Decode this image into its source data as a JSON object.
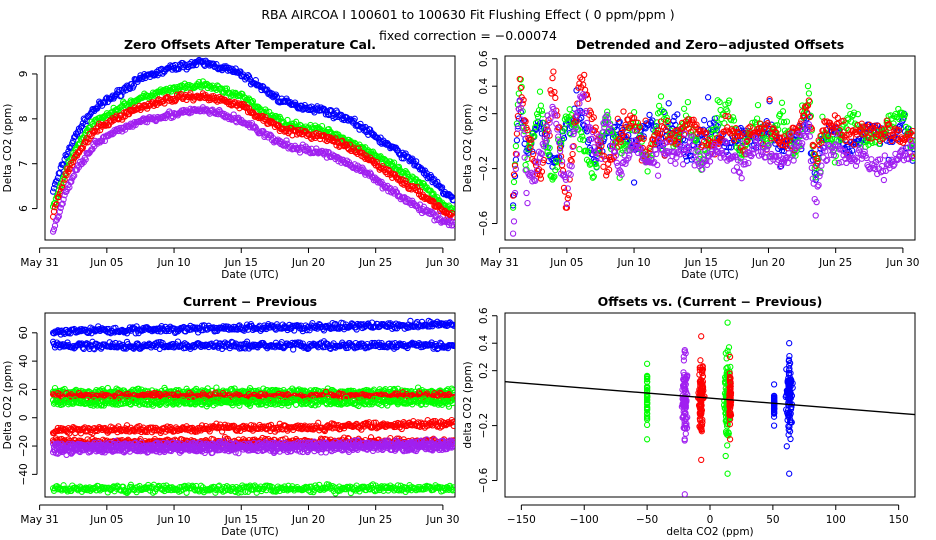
{
  "header": {
    "title": "RBA   AIRCOA I   100601 to 100630   Fit Flushing Effect ( 0 ppm/ppm )",
    "subtitle": "fixed correction = −0.00074"
  },
  "colors": {
    "blue": "#0000ff",
    "green": "#00ff00",
    "red": "#ff0000",
    "purple": "#a020f0",
    "black": "#000000"
  },
  "chart_data": [
    {
      "type": "scatter",
      "title": "Zero Offsets After Temperature Cal.",
      "xlabel": "Date (UTC)",
      "ylabel": "Delta CO2 (ppm)",
      "x_is_day": true,
      "xlim": [
        0.4,
        30.9
      ],
      "ylim": [
        5.3,
        9.4
      ],
      "xticks": [
        0,
        5,
        10,
        15,
        20,
        25,
        30
      ],
      "xtick_labels": [
        "May 31",
        "Jun 05",
        "Jun 10",
        "Jun 15",
        "Jun 20",
        "Jun 25",
        "Jun 30"
      ],
      "yticks": [
        6,
        7,
        8,
        9
      ],
      "ytick_labels": [
        "6",
        "7",
        "8",
        "9"
      ],
      "series": [
        {
          "name": "blue",
          "color": "#0000ff",
          "x": [
            1,
            2,
            3,
            4,
            5,
            6,
            7,
            8,
            9,
            10,
            11,
            12,
            13,
            14,
            15,
            16,
            17,
            18,
            19,
            20,
            21,
            22,
            23,
            24,
            25,
            26,
            27,
            28,
            29,
            30,
            30.8
          ],
          "values": [
            6.4,
            7.2,
            7.8,
            8.2,
            8.4,
            8.6,
            8.8,
            8.95,
            9.05,
            9.15,
            9.2,
            9.25,
            9.2,
            9.1,
            9.0,
            8.8,
            8.6,
            8.4,
            8.3,
            8.25,
            8.2,
            8.1,
            8.0,
            7.8,
            7.6,
            7.4,
            7.2,
            7.0,
            6.7,
            6.4,
            6.2
          ]
        },
        {
          "name": "green",
          "color": "#00ff00",
          "x": [
            1,
            2,
            3,
            4,
            5,
            6,
            7,
            8,
            9,
            10,
            11,
            12,
            13,
            14,
            15,
            16,
            17,
            18,
            19,
            20,
            21,
            22,
            23,
            24,
            25,
            26,
            27,
            28,
            29,
            30,
            30.8
          ],
          "values": [
            6.0,
            6.9,
            7.5,
            7.9,
            8.1,
            8.25,
            8.4,
            8.5,
            8.6,
            8.65,
            8.7,
            8.75,
            8.7,
            8.6,
            8.5,
            8.3,
            8.1,
            7.95,
            7.85,
            7.8,
            7.75,
            7.65,
            7.5,
            7.35,
            7.2,
            7.0,
            6.8,
            6.6,
            6.4,
            6.1,
            5.95
          ]
        },
        {
          "name": "red",
          "color": "#ff0000",
          "x": [
            1,
            2,
            3,
            4,
            5,
            6,
            7,
            8,
            9,
            10,
            11,
            12,
            13,
            14,
            15,
            16,
            17,
            18,
            19,
            20,
            21,
            22,
            23,
            24,
            25,
            26,
            27,
            28,
            29,
            30,
            30.8
          ],
          "values": [
            5.9,
            6.8,
            7.3,
            7.7,
            7.9,
            8.05,
            8.2,
            8.3,
            8.4,
            8.45,
            8.5,
            8.5,
            8.45,
            8.4,
            8.3,
            8.1,
            7.95,
            7.8,
            7.7,
            7.65,
            7.6,
            7.5,
            7.35,
            7.2,
            7.0,
            6.8,
            6.6,
            6.4,
            6.2,
            5.95,
            5.8
          ]
        },
        {
          "name": "purple",
          "color": "#a020f0",
          "x": [
            1,
            2,
            3,
            4,
            5,
            6,
            7,
            8,
            9,
            10,
            11,
            12,
            13,
            14,
            15,
            16,
            17,
            18,
            19,
            20,
            21,
            22,
            23,
            24,
            25,
            26,
            27,
            28,
            29,
            30,
            30.8
          ],
          "values": [
            5.5,
            6.4,
            7.0,
            7.4,
            7.6,
            7.75,
            7.9,
            8.0,
            8.05,
            8.1,
            8.15,
            8.2,
            8.15,
            8.05,
            7.95,
            7.8,
            7.6,
            7.45,
            7.35,
            7.3,
            7.25,
            7.15,
            7.0,
            6.85,
            6.65,
            6.45,
            6.25,
            6.05,
            5.9,
            5.75,
            5.65
          ]
        }
      ]
    },
    {
      "type": "scatter",
      "title": "Detrended and Zero−adjusted Offsets",
      "xlabel": "Date (UTC)",
      "ylabel": "Delta CO2 (ppm)",
      "x_is_day": true,
      "xlim": [
        0.4,
        30.9
      ],
      "ylim": [
        -0.72,
        0.62
      ],
      "xticks": [
        0,
        5,
        10,
        15,
        20,
        25,
        30
      ],
      "xtick_labels": [
        "May 31",
        "Jun 05",
        "Jun 10",
        "Jun 15",
        "Jun 20",
        "Jun 25",
        "Jun 30"
      ],
      "yticks": [
        -0.6,
        -0.2,
        0.2,
        0.4,
        0.6
      ],
      "ytick_labels": [
        "−0.6",
        "−0.2",
        "0.2",
        "0.4",
        "0.6"
      ],
      "series": [
        {
          "name": "blue",
          "color": "#0000ff",
          "x": [
            1,
            1.5,
            2,
            3,
            4,
            5,
            6,
            7,
            8,
            9,
            10,
            11,
            12,
            13,
            14,
            15,
            16,
            17,
            18,
            19,
            20,
            21,
            22,
            23,
            23.5,
            24,
            25,
            26,
            27,
            28,
            29,
            30,
            30.8
          ],
          "values": [
            -0.5,
            0.3,
            -0.1,
            0.15,
            -0.2,
            0.1,
            0.2,
            -0.15,
            0.05,
            0.1,
            -0.05,
            0.15,
            0.0,
            0.12,
            -0.1,
            0.05,
            0.1,
            -0.05,
            0.08,
            0.0,
            0.1,
            -0.05,
            0.05,
            0.2,
            -0.3,
            0.0,
            0.1,
            -0.1,
            0.05,
            0.1,
            0.0,
            0.15,
            -0.05
          ]
        },
        {
          "name": "green",
          "color": "#00ff00",
          "x": [
            1,
            1.5,
            2,
            3,
            4,
            5,
            6,
            7,
            8,
            9,
            10,
            11,
            12,
            13,
            14,
            15,
            16,
            17,
            18,
            19,
            20,
            21,
            22,
            23,
            23.5,
            24,
            25,
            26,
            27,
            28,
            29,
            30,
            30.8
          ],
          "values": [
            -0.45,
            0.55,
            -0.2,
            0.3,
            -0.3,
            0.2,
            0.05,
            -0.25,
            0.2,
            -0.1,
            0.15,
            -0.2,
            0.25,
            -0.05,
            0.2,
            -0.15,
            0.1,
            0.25,
            -0.1,
            0.15,
            0.0,
            0.2,
            -0.1,
            0.35,
            -0.25,
            0.1,
            -0.05,
            0.2,
            0.05,
            0.0,
            0.15,
            0.2,
            -0.1
          ]
        },
        {
          "name": "red",
          "color": "#ff0000",
          "x": [
            1,
            1.5,
            2,
            3,
            4,
            5,
            6,
            7,
            8,
            9,
            10,
            11,
            12,
            13,
            14,
            15,
            16,
            17,
            18,
            19,
            20,
            21,
            22,
            23,
            23.5,
            24,
            25,
            26,
            27,
            28,
            29,
            30,
            30.8
          ],
          "values": [
            -0.4,
            0.4,
            0.1,
            -0.3,
            0.45,
            -0.5,
            0.5,
            0.1,
            -0.2,
            0.05,
            0.15,
            -0.1,
            0.1,
            0.0,
            0.15,
            0.05,
            -0.05,
            0.1,
            0.0,
            0.05,
            0.1,
            0.0,
            0.05,
            0.3,
            -0.2,
            0.1,
            0.15,
            0.0,
            0.1,
            0.05,
            0.1,
            0.0,
            0.05
          ]
        },
        {
          "name": "purple",
          "color": "#a020f0",
          "x": [
            1,
            1.5,
            2,
            3,
            4,
            5,
            6,
            7,
            8,
            9,
            10,
            11,
            12,
            13,
            14,
            15,
            16,
            17,
            18,
            19,
            20,
            21,
            22,
            23,
            23.5,
            24,
            25,
            26,
            27,
            28,
            29,
            30,
            30.8
          ],
          "values": [
            -0.7,
            0.35,
            -0.3,
            -0.15,
            0.25,
            -0.4,
            0.4,
            -0.05,
            0.15,
            -0.2,
            0.0,
            -0.15,
            -0.05,
            -0.1,
            0.0,
            -0.15,
            -0.05,
            -0.1,
            -0.2,
            -0.05,
            -0.1,
            -0.15,
            -0.05,
            0.1,
            -0.5,
            -0.1,
            -0.05,
            -0.15,
            -0.1,
            -0.2,
            -0.15,
            -0.1,
            -0.05
          ]
        }
      ]
    },
    {
      "type": "scatter",
      "title": "Current − Previous",
      "xlabel": "Date (UTC)",
      "ylabel": "Delta CO2 (ppm)",
      "x_is_day": true,
      "xlim": [
        0.4,
        30.9
      ],
      "ylim": [
        -56,
        74
      ],
      "xticks": [
        0,
        5,
        10,
        15,
        20,
        25,
        30
      ],
      "xtick_labels": [
        "May 31",
        "Jun 05",
        "Jun 10",
        "Jun 15",
        "Jun 20",
        "Jun 25",
        "Jun 30"
      ],
      "yticks": [
        -40,
        -20,
        0,
        20,
        40,
        60
      ],
      "ytick_labels": [
        "−40",
        "−20",
        "0",
        "20",
        "40",
        "60"
      ],
      "series": [
        {
          "name": "blue",
          "color": "#0000ff",
          "x": [
            1,
            5,
            10,
            15,
            20,
            25,
            30.8
          ],
          "values": [
            61,
            62,
            62.5,
            63.5,
            64,
            65,
            66
          ]
        },
        {
          "name": "blue",
          "color": "#0000ff",
          "x": [
            1,
            10,
            20,
            30.8
          ],
          "values": [
            51,
            51,
            51,
            51
          ]
        },
        {
          "name": "green",
          "color": "#00ff00",
          "x": [
            1,
            10,
            20,
            30.8
          ],
          "values": [
            18,
            18,
            18,
            18
          ]
        },
        {
          "name": "red",
          "color": "#ff0000",
          "x": [
            1,
            10,
            20,
            30.8
          ],
          "values": [
            15,
            15,
            15,
            15
          ]
        },
        {
          "name": "green",
          "color": "#00ff00",
          "x": [
            1,
            10,
            20,
            30.8
          ],
          "values": [
            11,
            11,
            11,
            11
          ]
        },
        {
          "name": "red",
          "color": "#ff0000",
          "x": [
            1,
            5,
            10,
            15,
            20,
            25,
            30.8
          ],
          "values": [
            -9,
            -8.5,
            -8,
            -7,
            -7,
            -5.5,
            -4
          ]
        },
        {
          "name": "red",
          "color": "#ff0000",
          "x": [
            1,
            10,
            20,
            30.8
          ],
          "values": [
            -17,
            -17,
            -17,
            -17
          ]
        },
        {
          "name": "purple",
          "color": "#a020f0",
          "x": [
            1,
            10,
            20,
            30.8
          ],
          "values": [
            -20,
            -19.5,
            -19,
            -18
          ]
        },
        {
          "name": "purple",
          "color": "#a020f0",
          "x": [
            1,
            10,
            20,
            30.8
          ],
          "values": [
            -23,
            -22.5,
            -22,
            -21
          ]
        },
        {
          "name": "green",
          "color": "#00ff00",
          "x": [
            1,
            10,
            20,
            30.8
          ],
          "values": [
            -50,
            -50,
            -50,
            -50
          ]
        }
      ]
    },
    {
      "type": "scatter",
      "title": "Offsets vs. (Current − Previous)",
      "xlabel": "delta CO2 (ppm)",
      "ylabel": "delta CO2 (ppm)",
      "x_is_day": false,
      "xlim": [
        -163,
        163
      ],
      "ylim": [
        -0.72,
        0.62
      ],
      "xticks": [
        -150,
        -100,
        -50,
        0,
        50,
        100,
        150
      ],
      "xtick_labels": [
        "−150",
        "−100",
        "−50",
        "0",
        "50",
        "100",
        "150"
      ],
      "yticks": [
        -0.6,
        -0.2,
        0.2,
        0.4,
        0.6
      ],
      "ytick_labels": [
        "−0.6",
        "−0.2",
        "0.2",
        "0.4",
        "0.6"
      ],
      "series": [
        {
          "name": "green",
          "color": "#00ff00",
          "x": [
            -50,
            -50,
            -50
          ],
          "values": [
            -0.3,
            0.0,
            0.25
          ]
        },
        {
          "name": "purple",
          "color": "#a020f0",
          "x": [
            -24,
            -20,
            -18
          ],
          "values": [
            -0.7,
            0.0,
            0.35
          ]
        },
        {
          "name": "red",
          "color": "#ff0000",
          "x": [
            -10,
            -7,
            -3
          ],
          "values": [
            -0.45,
            0.0,
            0.45
          ]
        },
        {
          "name": "green",
          "color": "#00ff00",
          "x": [
            11,
            14,
            18
          ],
          "values": [
            -0.55,
            0.0,
            0.55
          ]
        },
        {
          "name": "red",
          "color": "#ff0000",
          "x": [
            15,
            16,
            17
          ],
          "values": [
            -0.3,
            0.0,
            0.3
          ]
        },
        {
          "name": "blue",
          "color": "#0000ff",
          "x": [
            51,
            51,
            51
          ],
          "values": [
            -0.2,
            -0.05,
            0.1
          ]
        },
        {
          "name": "blue",
          "color": "#0000ff",
          "x": [
            60,
            63,
            67
          ],
          "values": [
            -0.55,
            0.0,
            0.4
          ]
        }
      ],
      "fit_line": {
        "x": [
          -163,
          163
        ],
        "values": [
          0.12,
          -0.12
        ]
      }
    }
  ]
}
